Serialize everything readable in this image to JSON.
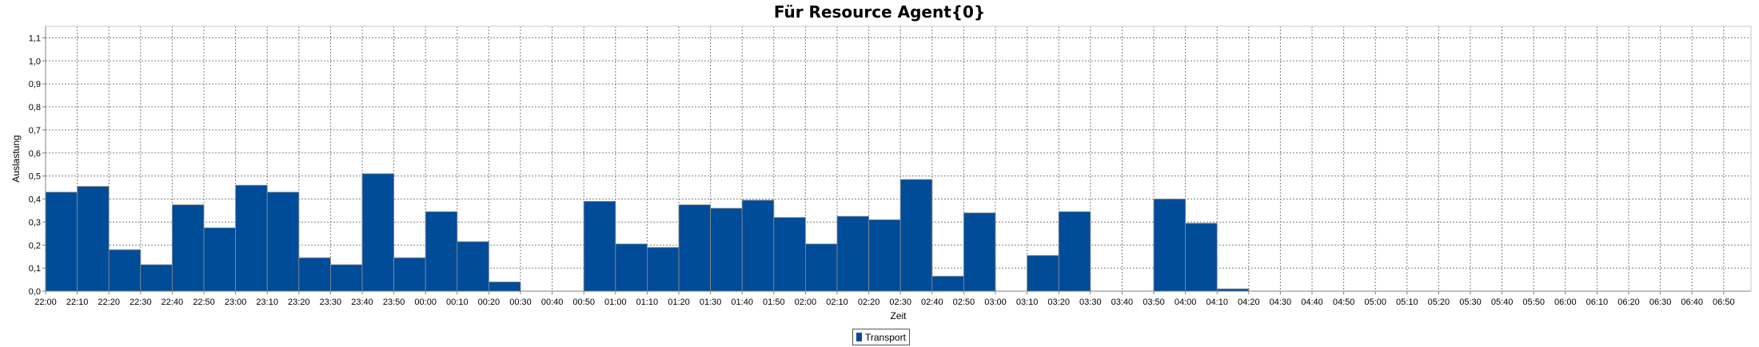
{
  "title": "Für Resource Agent{0}",
  "chart_data": {
    "type": "bar",
    "title": "Für Resource Agent{0}",
    "xlabel": "Zeit",
    "ylabel": "Auslastung",
    "ylim": [
      0,
      1.15
    ],
    "yticks": [
      "0,0",
      "0,1",
      "0,2",
      "0,3",
      "0,4",
      "0,5",
      "0,6",
      "0,7",
      "0,8",
      "0,9",
      "1,0",
      "1,1"
    ],
    "grid": true,
    "legend_position": "bottom-center",
    "categories": [
      "22:00",
      "22:10",
      "22:20",
      "22:30",
      "22:40",
      "22:50",
      "23:00",
      "23:10",
      "23:20",
      "23:30",
      "23:40",
      "23:50",
      "00:00",
      "00:10",
      "00:20",
      "00:30",
      "00:40",
      "00:50",
      "01:00",
      "01:10",
      "01:20",
      "01:30",
      "01:40",
      "01:50",
      "02:00",
      "02:10",
      "02:20",
      "02:30",
      "02:40",
      "02:50",
      "03:00",
      "03:10",
      "03:20",
      "03:30",
      "03:40",
      "03:50",
      "04:00",
      "04:10",
      "04:20",
      "04:30",
      "04:40",
      "04:50",
      "05:00",
      "05:10",
      "05:20",
      "05:30",
      "05:40",
      "05:50",
      "06:00",
      "06:10",
      "06:20",
      "06:30",
      "06:40",
      "06:50"
    ],
    "series": [
      {
        "name": "Transport",
        "color": "#004C99",
        "values": [
          0.43,
          0.455,
          0.18,
          0.115,
          0.375,
          0.275,
          0.46,
          0.43,
          0.145,
          0.115,
          0.51,
          0.145,
          0.345,
          0.215,
          0.04,
          0,
          0,
          0.39,
          0.205,
          0.19,
          0.375,
          0.36,
          0.395,
          0.32,
          0.205,
          0.325,
          0.31,
          0.485,
          0.065,
          0.34,
          0,
          0.155,
          0.345,
          0,
          0,
          0.4,
          0.295,
          0.01,
          0,
          0,
          0,
          0,
          0,
          0,
          0,
          0,
          0,
          0,
          0,
          0,
          0,
          0,
          0,
          0
        ]
      }
    ]
  }
}
